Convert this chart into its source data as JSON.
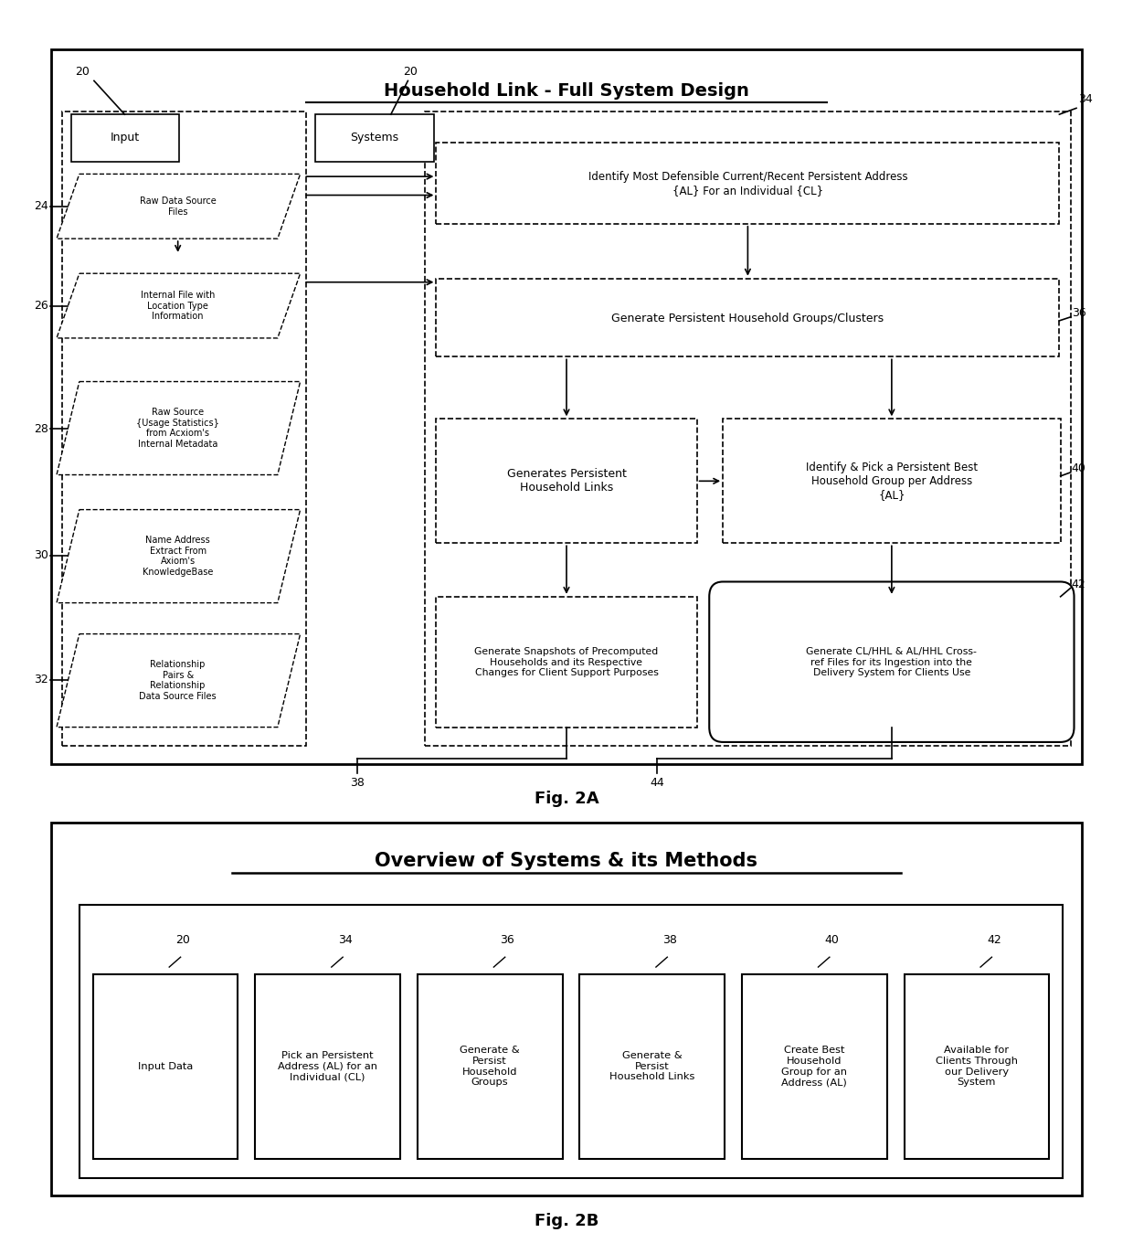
{
  "fig_width": 12.4,
  "fig_height": 13.6,
  "bg_color": "#ffffff",
  "fig2a": {
    "title": "Household Link - Full System Design",
    "input_items": [
      "Raw Data Source\nFiles",
      "Internal File with\nLocation Type\nInformation",
      "Raw Source\n{Usage Statistics}\nfrom Acxiom's\nInternal Metadata",
      "Name Address\nExtract From\nAxiom's\nKnowledgeBase",
      "Relationship\nPairs &\nRelationship\nData Source Files"
    ],
    "sys_box1": "Identify Most Defensible Current/Recent Persistent Address\n{AL} For an Individual {CL}",
    "sys_box2": "Generate Persistent Household Groups/Clusters",
    "sys_box3": "Generates Persistent\nHousehold Links",
    "sys_box4": "Generate Snapshots of Precomputed\nHouseholds and its Respective\nChanges for Client Support Purposes",
    "right_box1": "Identify & Pick a Persistent Best\nHousehold Group per Address\n{AL}",
    "right_box2": "Generate CL/HHL & AL/HHL Cross-\nref Files for its Ingestion into the\nDelivery System for Clients Use"
  },
  "fig2b": {
    "title": "Overview of Systems & its Methods",
    "boxes": [
      {
        "label": "20",
        "text": "Input Data"
      },
      {
        "label": "34",
        "text": "Pick an Persistent\nAddress (AL) for an\nIndividual (CL)"
      },
      {
        "label": "36",
        "text": "Generate &\nPersist\nHousehold\nGroups"
      },
      {
        "label": "38",
        "text": "Generate &\nPersist\nHousehold Links"
      },
      {
        "label": "40",
        "text": "Create Best\nHousehold\nGroup for an\nAddress (AL)"
      },
      {
        "label": "42",
        "text": "Available for\nClients Through\nour Delivery\nSystem"
      }
    ]
  }
}
